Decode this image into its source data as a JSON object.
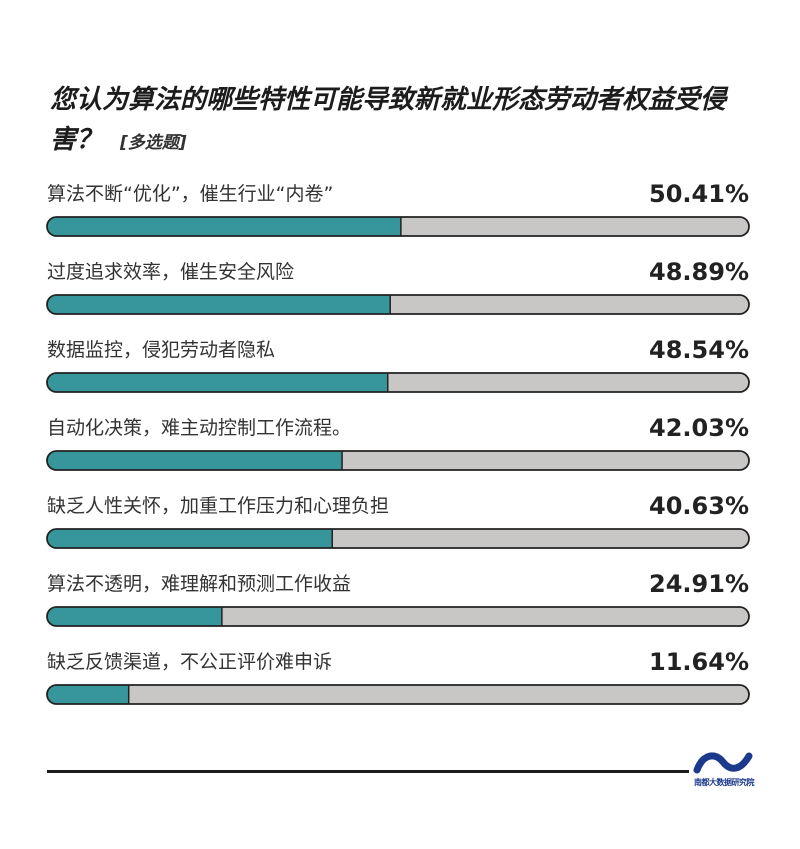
{
  "title": {
    "main": "您认为算法的哪些特性可能导致新就业形态劳动者权益受侵害？",
    "tag": "[多选题]"
  },
  "colors": {
    "bar_fill": "#37969b",
    "bar_track": "#c9c6c6",
    "bar_border": "#222222",
    "label": "#333333",
    "value": "#222222"
  },
  "chart_data": {
    "type": "bar",
    "orientation": "horizontal",
    "title": "您认为算法的哪些特性可能导致新就业形态劳动者权益受侵害？",
    "categories": [
      "算法不断“优化”，催生行业“内卷”",
      "过度追求效率，催生安全风险",
      "数据监控，侵犯劳动者隐私",
      "自动化决策，难主动控制工作流程。",
      "缺乏人性关怀，加重工作压力和心理负担",
      "算法不透明，难理解和预测工作收益",
      "缺乏反馈渠道，不公正评价难申诉"
    ],
    "values": [
      50.41,
      48.89,
      48.54,
      42.03,
      40.63,
      24.91,
      11.64
    ],
    "value_labels": [
      "50.41%",
      "48.89%",
      "48.54%",
      "42.03%",
      "40.63%",
      "24.91%",
      "11.64%"
    ],
    "unit": "%",
    "xlim": [
      0,
      100
    ],
    "grid": false
  },
  "logo": {
    "text": "南都大数据研究院"
  }
}
